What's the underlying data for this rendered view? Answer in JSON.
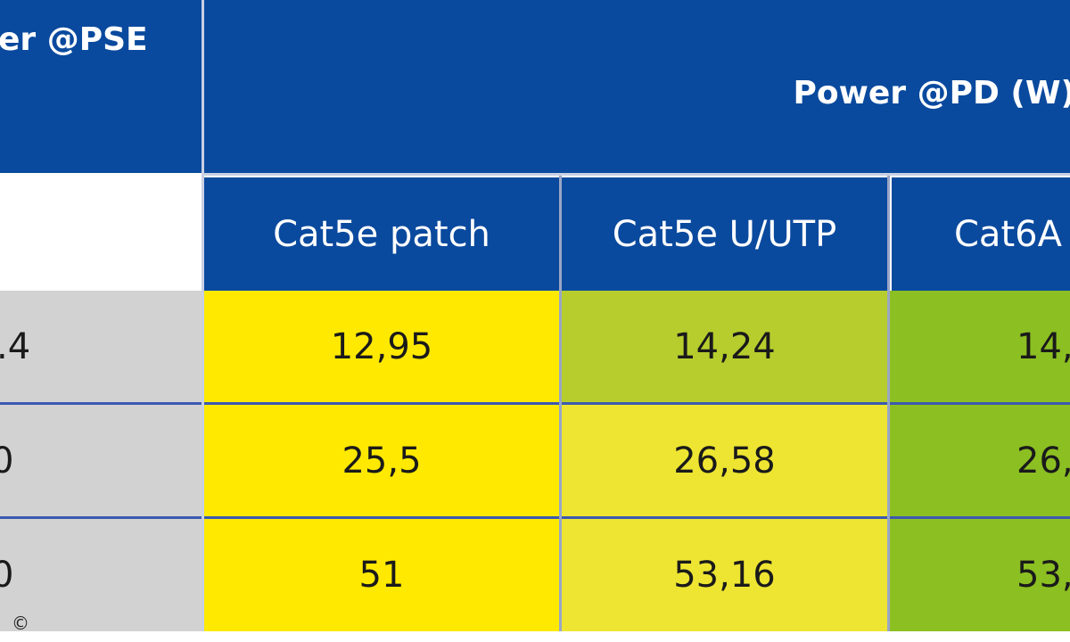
{
  "table": {
    "header": {
      "pse_title": "er @PSE",
      "pd_title": "Power @PD (W)"
    },
    "columns": [
      "Cat5e patch",
      "Cat5e U/UTP",
      "Cat6A"
    ],
    "rows": [
      {
        "pse": ".4",
        "values": [
          "12,95",
          "14,24",
          "14,"
        ]
      },
      {
        "pse": "0",
        "values": [
          "25,5",
          "26,58",
          "26,"
        ]
      },
      {
        "pse": "0",
        "values": [
          "51",
          "53,16",
          "53,"
        ]
      }
    ]
  },
  "colors": {
    "header_blue": "#0a4a9e",
    "left_gray": "#d2d2d2",
    "yellow": "#ffe900",
    "lime": "#ede532",
    "olive": "#b6cd2d",
    "green": "#8cbf22"
  },
  "watermark_icon": "copyright-icon"
}
